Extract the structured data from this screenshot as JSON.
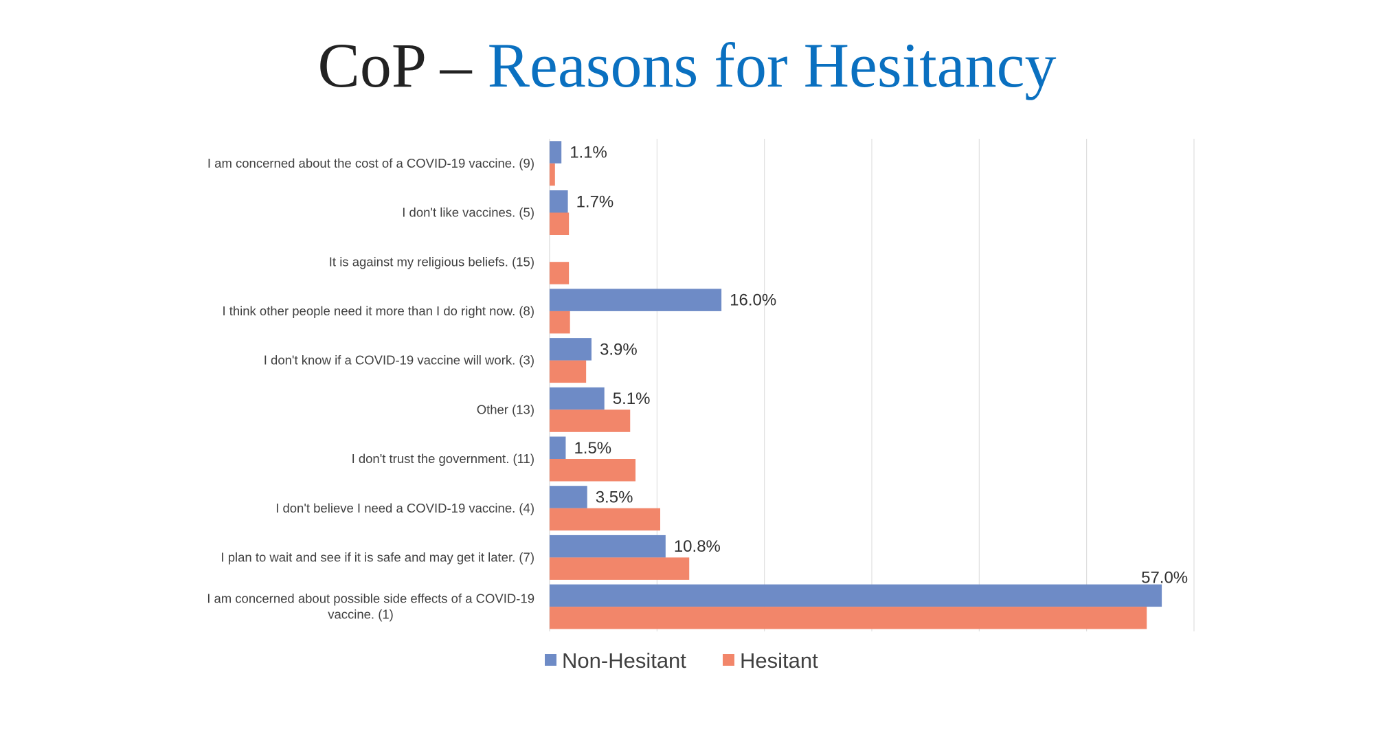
{
  "title": {
    "prefix": "CoP – ",
    "main": "Reasons for Hesitancy"
  },
  "colors": {
    "title_prefix": "#222222",
    "title_main": "#0a70c0",
    "non_hesitant": "#6e8bc6",
    "hesitant": "#f2866a",
    "gridline": "#d9d9d9"
  },
  "chart_data": {
    "type": "bar",
    "orientation": "horizontal",
    "categories": [
      "I am concerned about the cost of a COVID-19 vaccine.  (9)",
      "I don't like vaccines.  (5)",
      "It is against my religious beliefs.  (15)",
      "I think other people need it more than I do right now.  (8)",
      "I don't know if a COVID-19 vaccine will work.  (3)",
      "Other  (13)",
      "I don't trust the government.  (11)",
      "I don't believe I need a COVID-19 vaccine.  (4)",
      "I plan to wait and see if it is safe and may get it later.  (7)",
      "I am concerned about possible side effects of a COVID-19 vaccine.  (1)"
    ],
    "category_lines": [
      [
        "I am concerned about the cost of a COVID-19 vaccine.  (9)"
      ],
      [
        "I don't like vaccines.  (5)"
      ],
      [
        "It is against my religious beliefs.  (15)"
      ],
      [
        "I think other people need it more than I do right now.  (8)"
      ],
      [
        "I don't know if a COVID-19 vaccine will work.  (3)"
      ],
      [
        "Other  (13)"
      ],
      [
        "I don't trust the government.  (11)"
      ],
      [
        "I don't believe I need a COVID-19 vaccine.  (4)"
      ],
      [
        "I plan to wait and see if it is safe and may get it later.  (7)"
      ],
      [
        "I am concerned about possible side effects of a COVID-19",
        "vaccine.  (1)"
      ]
    ],
    "series": [
      {
        "name": "Non-Hesitant",
        "color": "#6e8bc6",
        "values": [
          1.1,
          1.7,
          0,
          16.0,
          3.9,
          5.1,
          1.5,
          3.5,
          10.8,
          57.0
        ],
        "labels": [
          "1.1%",
          "1.7%",
          "",
          "16.0%",
          "3.9%",
          "5.1%",
          "1.5%",
          "3.5%",
          "10.8%",
          "57.0%"
        ]
      },
      {
        "name": "Hesitant",
        "color": "#f2866a",
        "values": [
          0.5,
          1.8,
          1.8,
          1.9,
          3.4,
          7.5,
          8.0,
          10.3,
          13.0,
          55.6
        ],
        "labels": [
          "",
          "",
          "",
          "",
          "",
          "",
          "",
          "",
          "",
          ""
        ]
      }
    ],
    "xlim": [
      0,
      60
    ],
    "grid_step": 10,
    "grid": true,
    "axis_labels_shown": false,
    "legend_position": "bottom"
  }
}
